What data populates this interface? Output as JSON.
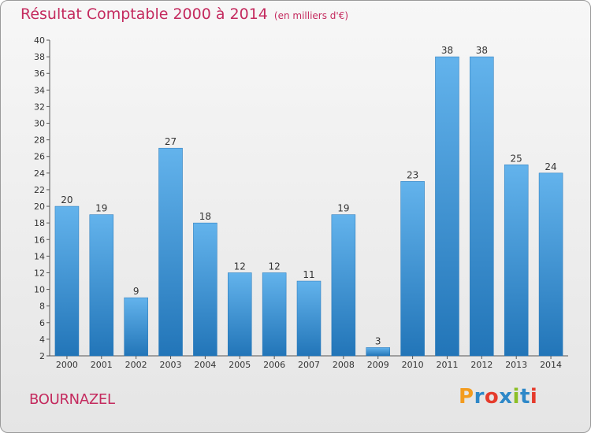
{
  "chart": {
    "title": "Résultat Comptable 2000 à 2014",
    "subtitle": "(en milliers d'€)",
    "commune": "BOURNAZEL",
    "logo": {
      "letters": [
        "P",
        "r",
        "o",
        "x",
        "i",
        "t",
        "i"
      ],
      "colors": [
        "#f39c1f",
        "#2e88c8",
        "#e53b2c",
        "#2e88c8",
        "#8cbf26",
        "#2e88c8",
        "#e53b2c"
      ]
    },
    "colors": {
      "bar": "#3a96da",
      "bar_light": "#63b3ec",
      "bar_dark": "#2275b8",
      "title": "#c42a5e"
    }
  },
  "chart_data": {
    "type": "bar",
    "title": "Résultat Comptable 2000 à 2014",
    "subtitle": "(en milliers d'€)",
    "xlabel": "",
    "ylabel": "",
    "categories": [
      "2000",
      "2001",
      "2002",
      "2003",
      "2004",
      "2005",
      "2006",
      "2007",
      "2008",
      "2009",
      "2010",
      "2011",
      "2012",
      "2013",
      "2014"
    ],
    "values": [
      20,
      19,
      9,
      27,
      18,
      12,
      12,
      11,
      19,
      3,
      23,
      38,
      38,
      25,
      24
    ],
    "ylim": [
      2,
      40
    ],
    "yticks": [
      2,
      4,
      6,
      8,
      10,
      12,
      14,
      16,
      18,
      20,
      22,
      24,
      26,
      28,
      30,
      32,
      34,
      36,
      38,
      40
    ],
    "grid": false,
    "legend": "none"
  }
}
